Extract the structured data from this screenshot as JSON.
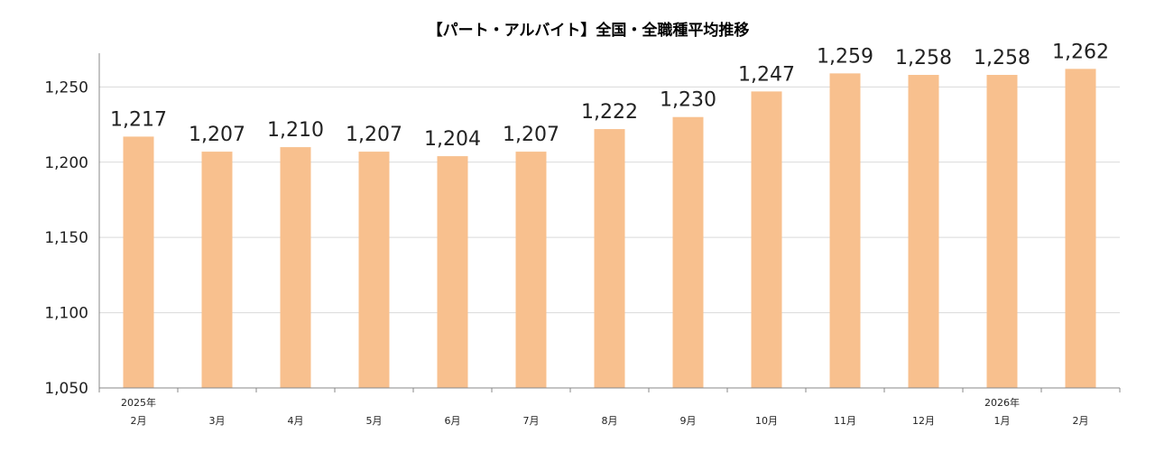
{
  "chart_data": {
    "type": "bar",
    "title": "【パート・アルバイト】全国・全職種平均推移",
    "xlabel": "",
    "ylabel": "",
    "categories": [
      "2月",
      "3月",
      "4月",
      "5月",
      "6月",
      "7月",
      "8月",
      "9月",
      "10月",
      "11月",
      "12月",
      "1月",
      "2月"
    ],
    "year_labels": [
      "2025年",
      "",
      "",
      "",
      "",
      "",
      "",
      "",
      "",
      "",
      "",
      "2026年",
      ""
    ],
    "values": [
      1217,
      1207,
      1210,
      1207,
      1204,
      1207,
      1222,
      1230,
      1247,
      1259,
      1258,
      1258,
      1262
    ],
    "data_labels": [
      "1,217",
      "1,207",
      "1,210",
      "1,207",
      "1,204",
      "1,207",
      "1,222",
      "1,230",
      "1,247",
      "1,259",
      "1,258",
      "1,258",
      "1,262"
    ],
    "ylim": [
      1050,
      1270
    ],
    "yticks": [
      1050,
      1100,
      1150,
      1200,
      1250
    ],
    "ytick_labels": [
      "1,050",
      "1,100",
      "1,150",
      "1,200",
      "1,250"
    ],
    "grid": true,
    "legend": "none",
    "colors": {
      "bar": "#f8c08e",
      "grid": "#d9d9d9",
      "axis": "#888888"
    }
  }
}
